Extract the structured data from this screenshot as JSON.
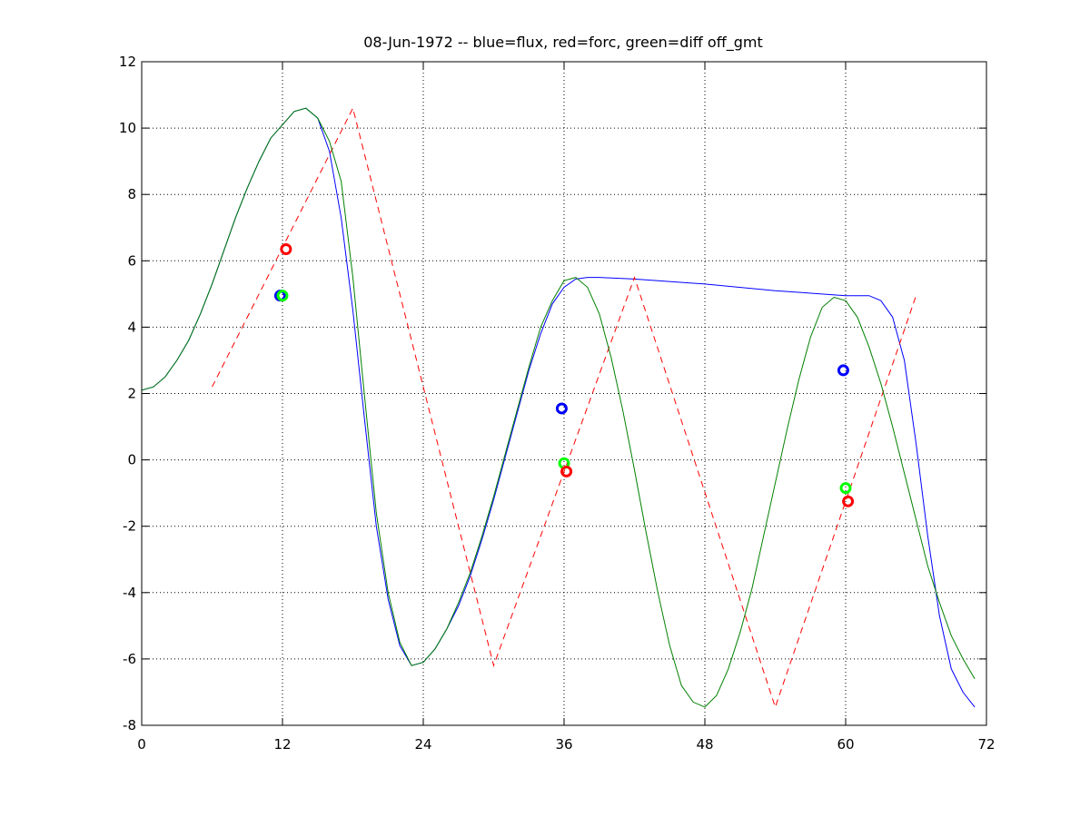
{
  "chart_data": {
    "type": "line",
    "title": "08-Jun-1972 -- blue=flux, red=forc, green=diff off_gmt",
    "xlabel": "",
    "ylabel": "",
    "xlim": [
      0,
      72
    ],
    "ylim": [
      -8,
      12
    ],
    "xticks": [
      0,
      12,
      24,
      36,
      48,
      60,
      72
    ],
    "yticks": [
      -8,
      -6,
      -4,
      -2,
      0,
      2,
      4,
      6,
      8,
      10,
      12
    ],
    "grid": true,
    "legend": "none",
    "series": [
      {
        "color": "#0000ff",
        "style": "solid",
        "x": [
          0,
          1,
          2,
          3,
          4,
          5,
          6,
          7,
          8,
          9,
          10,
          11,
          12,
          13,
          14,
          15,
          16,
          17,
          18,
          19,
          20,
          21,
          22,
          23,
          24,
          25,
          26,
          27,
          28,
          29,
          30,
          31,
          32,
          33,
          34,
          35,
          36,
          37,
          38,
          39,
          42,
          48,
          54,
          60,
          62,
          63,
          64,
          65,
          66,
          67,
          68,
          69,
          70,
          71
        ],
        "y": [
          2.1,
          2.2,
          2.5,
          3.0,
          3.6,
          4.4,
          5.3,
          6.3,
          7.3,
          8.2,
          9.0,
          9.7,
          10.1,
          10.5,
          10.6,
          10.3,
          9.3,
          7.3,
          4.5,
          1.2,
          -2.0,
          -4.2,
          -5.6,
          -6.2,
          -6.1,
          -5.7,
          -5.1,
          -4.4,
          -3.5,
          -2.4,
          -1.2,
          0.1,
          1.4,
          2.7,
          3.8,
          4.7,
          5.2,
          5.45,
          5.5,
          5.5,
          5.45,
          5.3,
          5.1,
          4.95,
          4.95,
          4.8,
          4.3,
          3.0,
          0.5,
          -2.3,
          -4.7,
          -6.3,
          -7.0,
          -7.45
        ]
      },
      {
        "color": "#ff0000",
        "style": "dashed",
        "x": [
          6,
          18,
          30,
          42,
          54,
          66
        ],
        "y": [
          2.2,
          10.6,
          -6.2,
          5.5,
          -7.45,
          4.95
        ]
      },
      {
        "color": "#008000",
        "style": "solid",
        "x": [
          0,
          1,
          2,
          3,
          4,
          5,
          6,
          7,
          8,
          9,
          10,
          11,
          12,
          13,
          14,
          15,
          16,
          17,
          18,
          19,
          20,
          21,
          22,
          23,
          24,
          25,
          26,
          27,
          28,
          29,
          30,
          31,
          32,
          33,
          34,
          35,
          36,
          37,
          38,
          39,
          40,
          41,
          42,
          43,
          44,
          45,
          46,
          47,
          48,
          49,
          50,
          51,
          52,
          53,
          54,
          55,
          56,
          57,
          58,
          59,
          60,
          61,
          62,
          63,
          64,
          65,
          66,
          67,
          68,
          69,
          70,
          71
        ],
        "y": [
          2.1,
          2.2,
          2.5,
          3.0,
          3.6,
          4.4,
          5.3,
          6.3,
          7.3,
          8.2,
          9.0,
          9.7,
          10.1,
          10.5,
          10.6,
          10.3,
          9.6,
          8.4,
          5.5,
          1.9,
          -1.6,
          -4.0,
          -5.5,
          -6.2,
          -6.1,
          -5.7,
          -5.1,
          -4.3,
          -3.4,
          -2.3,
          -1.1,
          0.2,
          1.5,
          2.8,
          4.0,
          4.8,
          5.4,
          5.5,
          5.2,
          4.4,
          3.1,
          1.5,
          -0.3,
          -2.2,
          -4.0,
          -5.6,
          -6.8,
          -7.3,
          -7.45,
          -7.1,
          -6.3,
          -5.2,
          -3.9,
          -2.3,
          -0.7,
          0.9,
          2.4,
          3.7,
          4.6,
          4.9,
          4.8,
          4.3,
          3.4,
          2.3,
          1.0,
          -0.4,
          -1.8,
          -3.2,
          -4.3,
          -5.3,
          -6.0,
          -6.6
        ]
      }
    ],
    "markers": [
      {
        "color": "#0000ff",
        "x": 11.8,
        "y": 4.95
      },
      {
        "color": "#00ff00",
        "x": 12.0,
        "y": 4.95
      },
      {
        "color": "#ff0000",
        "x": 12.3,
        "y": 6.35
      },
      {
        "color": "#0000ff",
        "x": 35.8,
        "y": 1.55
      },
      {
        "color": "#00ff00",
        "x": 36.0,
        "y": -0.1
      },
      {
        "color": "#ff0000",
        "x": 36.2,
        "y": -0.35
      },
      {
        "color": "#0000ff",
        "x": 59.8,
        "y": 2.7
      },
      {
        "color": "#00ff00",
        "x": 60.0,
        "y": -0.85
      },
      {
        "color": "#ff0000",
        "x": 60.2,
        "y": -1.25
      }
    ]
  }
}
